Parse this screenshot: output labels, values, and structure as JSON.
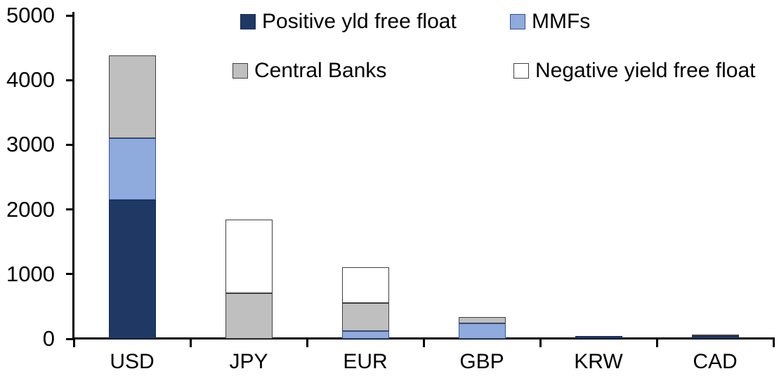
{
  "chart_data": {
    "type": "bar",
    "stacked": true,
    "title": "",
    "xlabel": "",
    "ylabel": "",
    "ylim": [
      0,
      5000
    ],
    "yticks": [
      "0",
      "1000",
      "2000",
      "3000",
      "4000",
      "5000"
    ],
    "grid": false,
    "legend_position": "top",
    "categories": [
      "USD",
      "JPY",
      "EUR",
      "GBP",
      "KRW",
      "CAD"
    ],
    "series": [
      {
        "name": "Positive yld free float",
        "color": "#1F3864",
        "border_color": "#152C52",
        "values": [
          2150,
          0,
          0,
          0,
          45,
          40
        ]
      },
      {
        "name": "MMFs",
        "color": "#8FAADC",
        "border_color": "#2E5597",
        "values": [
          950,
          0,
          120,
          240,
          0,
          0
        ]
      },
      {
        "name": "Central Banks",
        "color": "#BFBFBF",
        "border_color": "#404040",
        "values": [
          1280,
          700,
          430,
          100,
          0,
          25
        ]
      },
      {
        "name": "Negative yield free float",
        "color": "#FFFFFF",
        "border_color": "#404040",
        "values": [
          0,
          1140,
          560,
          0,
          0,
          0
        ]
      }
    ],
    "totals_by_category": [
      4380,
      1840,
      1110,
      340,
      45,
      65
    ]
  }
}
